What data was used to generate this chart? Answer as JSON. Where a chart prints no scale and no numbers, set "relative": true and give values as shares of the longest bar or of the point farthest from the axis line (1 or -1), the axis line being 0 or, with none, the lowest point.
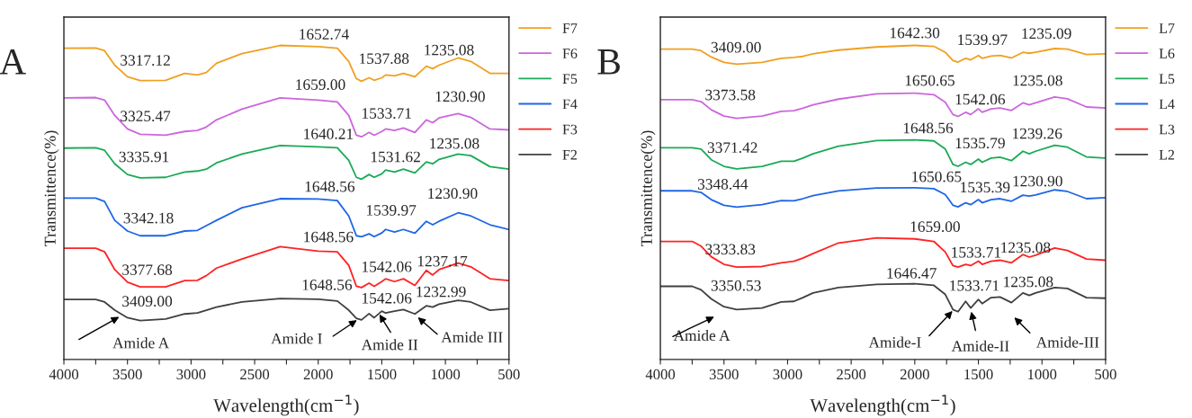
{
  "chart_data": [
    {
      "type": "line",
      "title": "A",
      "xlabel": "Wavelength(cm$^{−1}$)",
      "ylabel": "Transmittence(%)",
      "relative": true,
      "legend": "right",
      "tick_labels": "x",
      "grid": false,
      "x": [
        4000,
        3750,
        3680,
        3600,
        3500,
        3400,
        3200,
        3050,
        2950,
        2880,
        2800,
        2600,
        2300,
        2000,
        1850,
        1760,
        1700,
        1660,
        1600,
        1560,
        1500,
        1470,
        1400,
        1330,
        1240,
        1150,
        1100,
        1050,
        900,
        800,
        650,
        500
      ],
      "xlim": [
        4000,
        500
      ],
      "xticks": [
        4000,
        {
          "value": 3750,
          "label": null
        },
        3500,
        {
          "value": 3250,
          "label": null
        },
        3000,
        {
          "value": 2750,
          "label": null
        },
        2500,
        {
          "value": 2250,
          "label": null
        },
        2000,
        {
          "value": 1750,
          "label": null
        },
        1500,
        {
          "value": 1250,
          "label": null
        },
        1000,
        {
          "value": 750,
          "label": null
        },
        500
      ],
      "series": [
        {
          "name": "F7",
          "color": "#f0a020",
          "values": [
            0.991,
            0.992,
            0.983,
            0.937,
            0.9,
            0.888,
            0.889,
            0.911,
            0.906,
            0.914,
            0.943,
            0.974,
            1.0,
            0.996,
            0.991,
            0.949,
            0.894,
            0.886,
            0.897,
            0.889,
            0.897,
            0.906,
            0.903,
            0.911,
            0.9,
            0.934,
            0.926,
            0.937,
            0.96,
            0.949,
            0.911,
            0.911
          ]
        },
        {
          "name": "F6",
          "color": "#cc66dd",
          "values": [
            0.833,
            0.834,
            0.826,
            0.777,
            0.734,
            0.717,
            0.714,
            0.726,
            0.729,
            0.74,
            0.763,
            0.797,
            0.833,
            0.826,
            0.82,
            0.777,
            0.714,
            0.709,
            0.723,
            0.714,
            0.726,
            0.734,
            0.729,
            0.737,
            0.723,
            0.763,
            0.754,
            0.769,
            0.783,
            0.771,
            0.734,
            0.731
          ]
        },
        {
          "name": "F5",
          "color": "#1aaa55",
          "values": [
            0.673,
            0.674,
            0.666,
            0.623,
            0.589,
            0.578,
            0.58,
            0.597,
            0.6,
            0.606,
            0.626,
            0.654,
            0.681,
            0.677,
            0.674,
            0.634,
            0.58,
            0.574,
            0.589,
            0.58,
            0.591,
            0.603,
            0.597,
            0.606,
            0.594,
            0.629,
            0.623,
            0.637,
            0.654,
            0.649,
            0.614,
            0.606
          ]
        },
        {
          "name": "F4",
          "color": "#1f66e5",
          "values": [
            0.514,
            0.514,
            0.503,
            0.443,
            0.409,
            0.394,
            0.394,
            0.409,
            0.411,
            0.426,
            0.443,
            0.483,
            0.512,
            0.511,
            0.506,
            0.457,
            0.394,
            0.391,
            0.4,
            0.391,
            0.403,
            0.414,
            0.406,
            0.414,
            0.402,
            0.44,
            0.429,
            0.44,
            0.467,
            0.457,
            0.429,
            0.414
          ]
        },
        {
          "name": "F3",
          "color": "#ff2222",
          "values": [
            0.354,
            0.354,
            0.343,
            0.286,
            0.246,
            0.231,
            0.231,
            0.251,
            0.252,
            0.267,
            0.291,
            0.32,
            0.359,
            0.345,
            0.343,
            0.3,
            0.233,
            0.229,
            0.243,
            0.233,
            0.248,
            0.257,
            0.248,
            0.257,
            0.236,
            0.284,
            0.269,
            0.286,
            0.307,
            0.295,
            0.257,
            0.251
          ]
        },
        {
          "name": "F2",
          "color": "#404040",
          "values": [
            0.191,
            0.191,
            0.183,
            0.157,
            0.133,
            0.124,
            0.129,
            0.145,
            0.148,
            0.157,
            0.167,
            0.183,
            0.194,
            0.192,
            0.186,
            0.157,
            0.131,
            0.126,
            0.146,
            0.133,
            0.154,
            0.148,
            0.154,
            0.159,
            0.145,
            0.171,
            0.167,
            0.176,
            0.188,
            0.183,
            0.157,
            0.162
          ]
        }
      ],
      "annotations": [
        "3317.12",
        "1652.74",
        "1537.88",
        "1235.08",
        "1659.00",
        "3325.47",
        "1533.71",
        "1230.90",
        "1640.21",
        "3335.91",
        "1531.62",
        "1235.08",
        "1648.56",
        "3342.18",
        "1539.97",
        "1230.90",
        "1648.56",
        "3377.68",
        "1542.06",
        "1237.17",
        "1648.56",
        "3409.00",
        "1542.06",
        "1232.99",
        "Amide A",
        "Amide I",
        "Amide II",
        "Amide III"
      ]
    },
    {
      "type": "line",
      "title": "B",
      "xlabel": "Wavelength(cm$^{−1}$)",
      "ylabel": "Transmittence(%)",
      "relative": true,
      "legend": "right",
      "tick_labels": "x",
      "grid": false,
      "x": [
        4000,
        3750,
        3680,
        3600,
        3500,
        3400,
        3200,
        3050,
        2950,
        2880,
        2800,
        2600,
        2300,
        2000,
        1850,
        1760,
        1700,
        1660,
        1600,
        1560,
        1500,
        1470,
        1400,
        1330,
        1240,
        1150,
        1100,
        1050,
        900,
        800,
        650,
        500
      ],
      "xlim": [
        4000,
        500
      ],
      "xticks": [
        4000,
        {
          "value": 3750,
          "label": null
        },
        3500,
        {
          "value": 3250,
          "label": null
        },
        3000,
        {
          "value": 2750,
          "label": null
        },
        2500,
        {
          "value": 2250,
          "label": null
        },
        2000,
        {
          "value": 1750,
          "label": null
        },
        1500,
        {
          "value": 1250,
          "label": null
        },
        1000,
        {
          "value": 750,
          "label": null
        },
        500
      ],
      "series": [
        {
          "name": "L7",
          "color": "#f0a020",
          "values": [
            0.988,
            0.988,
            0.983,
            0.963,
            0.946,
            0.94,
            0.946,
            0.959,
            0.962,
            0.965,
            0.973,
            0.985,
            0.995,
            1.0,
            0.997,
            0.978,
            0.952,
            0.947,
            0.959,
            0.954,
            0.968,
            0.959,
            0.966,
            0.968,
            0.96,
            0.978,
            0.975,
            0.978,
            0.99,
            0.988,
            0.971,
            0.973
          ]
        },
        {
          "name": "L6",
          "color": "#cc66dd",
          "values": [
            0.827,
            0.827,
            0.821,
            0.795,
            0.775,
            0.768,
            0.775,
            0.79,
            0.792,
            0.8,
            0.811,
            0.829,
            0.846,
            0.848,
            0.843,
            0.819,
            0.78,
            0.774,
            0.787,
            0.78,
            0.798,
            0.787,
            0.798,
            0.801,
            0.793,
            0.817,
            0.811,
            0.817,
            0.836,
            0.83,
            0.804,
            0.801
          ]
        },
        {
          "name": "L5",
          "color": "#1aaa55",
          "values": [
            0.674,
            0.674,
            0.67,
            0.636,
            0.615,
            0.607,
            0.615,
            0.631,
            0.631,
            0.641,
            0.655,
            0.679,
            0.697,
            0.699,
            0.696,
            0.67,
            0.621,
            0.615,
            0.628,
            0.621,
            0.638,
            0.628,
            0.641,
            0.644,
            0.633,
            0.663,
            0.655,
            0.663,
            0.682,
            0.676,
            0.645,
            0.641
          ]
        },
        {
          "name": "L4",
          "color": "#1f66e5",
          "values": [
            0.537,
            0.537,
            0.532,
            0.509,
            0.491,
            0.485,
            0.493,
            0.506,
            0.505,
            0.512,
            0.522,
            0.537,
            0.546,
            0.547,
            0.544,
            0.525,
            0.491,
            0.486,
            0.499,
            0.493,
            0.509,
            0.499,
            0.509,
            0.512,
            0.504,
            0.523,
            0.52,
            0.524,
            0.54,
            0.535,
            0.512,
            0.515
          ]
        },
        {
          "name": "L3",
          "color": "#ff2222",
          "values": [
            0.376,
            0.376,
            0.361,
            0.327,
            0.303,
            0.294,
            0.296,
            0.308,
            0.313,
            0.323,
            0.337,
            0.371,
            0.387,
            0.384,
            0.376,
            0.342,
            0.299,
            0.294,
            0.303,
            0.299,
            0.313,
            0.303,
            0.313,
            0.316,
            0.308,
            0.334,
            0.326,
            0.332,
            0.355,
            0.347,
            0.32,
            0.316
          ]
        },
        {
          "name": "L2",
          "color": "#404040",
          "values": [
            0.233,
            0.233,
            0.222,
            0.193,
            0.168,
            0.159,
            0.164,
            0.183,
            0.185,
            0.197,
            0.212,
            0.229,
            0.239,
            0.241,
            0.236,
            0.207,
            0.159,
            0.152,
            0.185,
            0.164,
            0.191,
            0.178,
            0.197,
            0.199,
            0.181,
            0.212,
            0.204,
            0.212,
            0.229,
            0.226,
            0.197,
            0.195
          ]
        }
      ],
      "annotations": [
        "3409.00",
        "1642.30",
        "1539.97",
        "1235.09",
        "3373.58",
        "1650.65",
        "1542.06",
        "1235.08",
        "3371.42",
        "1648.56",
        "1535.79",
        "1239.26",
        "3348.44",
        "1650.65",
        "1535.39",
        "1230.90",
        "1659.00",
        "3333.83",
        "1533.71",
        "1235.08",
        "1646.47",
        "3350.53",
        "1533.71",
        "1235.08",
        "Amide A",
        "Amide-I",
        "Amide-II",
        "Amide-III"
      ]
    }
  ]
}
